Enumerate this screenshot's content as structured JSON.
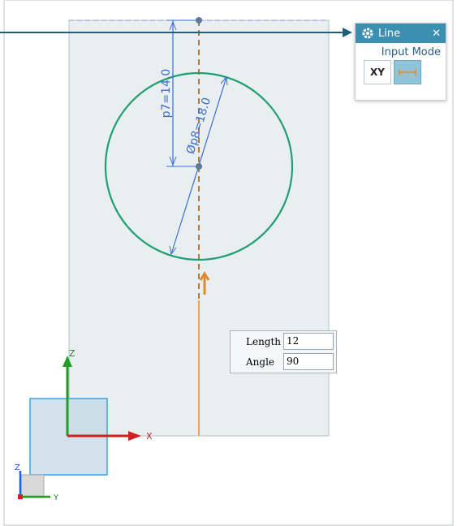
{
  "dialog": {
    "title": "Line",
    "close": "✕",
    "input_mode_label": "Input Mode",
    "xy_button": "XY"
  },
  "dimensions": {
    "vertical": "p7=14.0",
    "diameter": "Øp8=18.0"
  },
  "input_box": {
    "rows": [
      {
        "label": "Length",
        "value": "12"
      },
      {
        "label": "Angle",
        "value": "90"
      }
    ]
  },
  "triad": {
    "main_z": "Z",
    "main_x": "X",
    "mini_z": "Z",
    "mini_y": "Y"
  }
}
